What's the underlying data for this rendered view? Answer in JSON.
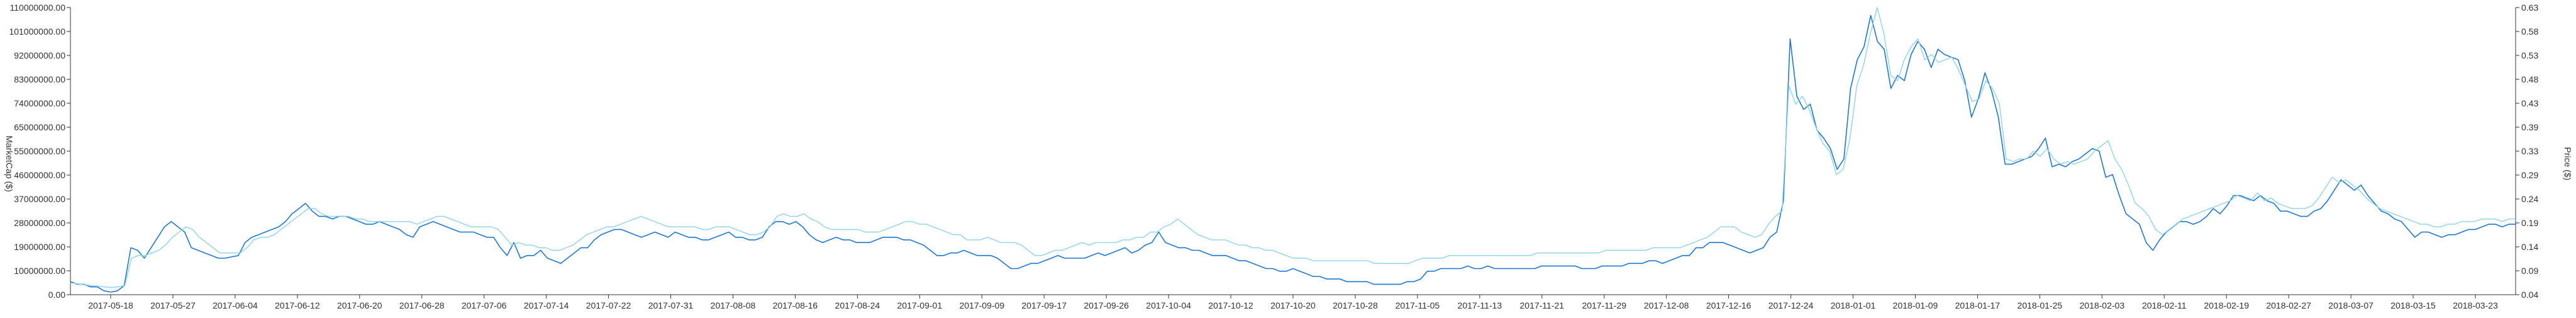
{
  "chart_data": {
    "type": "line",
    "title": "",
    "ylabel_left": "MarketCap ($)",
    "ylabel_right": "Price ($)",
    "y_left_ticks": [
      "0.00",
      "10000000.00",
      "19000000.00",
      "28000000.00",
      "37000000.00",
      "46000000.00",
      "55000000.00",
      "65000000.00",
      "74000000.00",
      "83000000.00",
      "92000000.00",
      "101000000.00",
      "110000000.00"
    ],
    "y_right_ticks": [
      "0.04",
      "0.09",
      "0.14",
      "0.19",
      "0.24",
      "0.29",
      "0.33",
      "0.39",
      "0.43",
      "0.48",
      "0.53",
      "0.58",
      "0.63"
    ],
    "x_ticks": [
      "2017-05-18",
      "2017-05-27",
      "2017-06-04",
      "2017-06-12",
      "2017-06-20",
      "2017-06-28",
      "2017-07-06",
      "2017-07-14",
      "2017-07-22",
      "2017-07-31",
      "2017-08-08",
      "2017-08-16",
      "2017-08-24",
      "2017-09-01",
      "2017-09-09",
      "2017-09-17",
      "2017-09-26",
      "2017-10-04",
      "2017-10-12",
      "2017-10-20",
      "2017-10-28",
      "2017-11-05",
      "2017-11-13",
      "2017-11-21",
      "2017-11-29",
      "2017-12-08",
      "2017-12-16",
      "2017-12-24",
      "2018-01-01",
      "2018-01-09",
      "2018-01-17",
      "2018-01-25",
      "2018-02-03",
      "2018-02-11",
      "2018-02-19",
      "2018-02-27",
      "2018-03-07",
      "2018-03-15",
      "2018-03-23"
    ],
    "ylim_left": [
      0,
      110000000
    ],
    "ylim_right": [
      0.04,
      0.63
    ],
    "colors": {
      "marketcap": "#1f77d4",
      "price": "#8fd3e8",
      "axis": "#333333"
    },
    "series": [
      {
        "key": "marketcap",
        "values": [
          5,
          4,
          4,
          3,
          3,
          1.5,
          1,
          1.5,
          3.5,
          18,
          17,
          14,
          18,
          22,
          26,
          28,
          26,
          24,
          18,
          17,
          16,
          15,
          14,
          14,
          14.5,
          15,
          20,
          22,
          23,
          24,
          25,
          26,
          28,
          31,
          33,
          35,
          32,
          30,
          30,
          29,
          30,
          30,
          29,
          28,
          27,
          27,
          28,
          27,
          26,
          25,
          23,
          22,
          26,
          27,
          28,
          27,
          26,
          25,
          24,
          24,
          24,
          23,
          22,
          22,
          18,
          15,
          20,
          14,
          15,
          15,
          17,
          14,
          13,
          12,
          14,
          16,
          18,
          18,
          21,
          23,
          24,
          25,
          25,
          24,
          23,
          22,
          23,
          24,
          23,
          22,
          24,
          23,
          22,
          22,
          21,
          21,
          22,
          23,
          24,
          22,
          22,
          21,
          21,
          22,
          26,
          28,
          28,
          27,
          28,
          26,
          23,
          21,
          20,
          21,
          22,
          21,
          21,
          20,
          20,
          20,
          21,
          22,
          22,
          22,
          21,
          21,
          20,
          19,
          17,
          15,
          15,
          16,
          16,
          17,
          16,
          15,
          15,
          15,
          14,
          12,
          10,
          10,
          11,
          12,
          12,
          13,
          14,
          15,
          14,
          14,
          14,
          14,
          15,
          16,
          15,
          16,
          17,
          18,
          16,
          17,
          19,
          20,
          24,
          20,
          19,
          18,
          18,
          17,
          17,
          16,
          15,
          15,
          15,
          14,
          13,
          13,
          12,
          11,
          10,
          10,
          9,
          9,
          10,
          9,
          8,
          7,
          7,
          6,
          6,
          6,
          5,
          5,
          5,
          5,
          4,
          4,
          4,
          4,
          4,
          5,
          5,
          6,
          9,
          9,
          10,
          10,
          10,
          10,
          11,
          10,
          10,
          11,
          10,
          10,
          10,
          10,
          10,
          10,
          10,
          11,
          11,
          11,
          11,
          11,
          11,
          10,
          10,
          10,
          11,
          11,
          11,
          11,
          12,
          12,
          12,
          13,
          13,
          12,
          13,
          14,
          15,
          15,
          18,
          18,
          20,
          20,
          20,
          19,
          18,
          17,
          16,
          17,
          18,
          22,
          24,
          36,
          98,
          76,
          71,
          73,
          63,
          60,
          56,
          48,
          52,
          79,
          90,
          95,
          107,
          97,
          94,
          79,
          84,
          82,
          92,
          97,
          94,
          87,
          94,
          92,
          91,
          90,
          82,
          68,
          75,
          85,
          78,
          68,
          50,
          50,
          51,
          52,
          53,
          56,
          60,
          49,
          50,
          49,
          51,
          52,
          54,
          56,
          55,
          45,
          46,
          38,
          31,
          29,
          27,
          20,
          17,
          21,
          24,
          26,
          28,
          28,
          27,
          28,
          30,
          33,
          31,
          34,
          38,
          38,
          37,
          36,
          38,
          36,
          35,
          32,
          32,
          31,
          30,
          30,
          32,
          33,
          36,
          40,
          44,
          42,
          40,
          42,
          38,
          35,
          32,
          31,
          29,
          28,
          25,
          22,
          24,
          24,
          23,
          22,
          23,
          23,
          24,
          25,
          25,
          26,
          27,
          27,
          26,
          27,
          27
        ]
      },
      {
        "key": "price",
        "values": [
          4.5,
          4.2,
          3.8,
          3.5,
          3.3,
          3,
          2.8,
          3,
          3.5,
          14,
          15,
          15,
          16,
          17,
          19,
          22,
          24,
          26,
          25,
          22,
          20,
          18,
          16,
          16,
          16,
          16,
          18,
          21,
          22,
          22,
          23,
          25,
          27,
          29,
          31,
          33,
          33,
          31,
          30,
          30,
          30,
          30,
          29,
          29,
          28,
          28,
          28,
          28,
          28,
          28,
          28,
          27,
          28,
          29,
          30,
          30,
          29,
          28,
          27,
          26,
          26,
          26,
          26,
          25,
          22,
          19,
          20,
          19,
          19,
          18,
          18,
          17,
          17,
          18,
          19,
          21,
          23,
          24,
          25,
          26,
          26,
          27,
          28,
          29,
          30,
          29,
          28,
          27,
          26,
          26,
          26,
          26,
          26,
          25,
          25,
          26,
          26,
          26,
          25,
          24,
          23,
          23,
          24,
          26,
          30,
          31,
          30,
          30,
          31,
          29,
          28,
          26,
          25,
          25,
          25,
          25,
          25,
          24,
          24,
          24,
          25,
          26,
          27,
          28,
          28,
          27,
          27,
          26,
          25,
          24,
          23,
          23,
          21,
          21,
          21,
          22,
          21,
          20,
          20,
          20,
          19,
          17,
          15,
          15,
          16,
          17,
          17,
          18,
          19,
          20,
          19,
          20,
          20,
          20,
          20,
          21,
          21,
          22,
          22,
          24,
          24,
          26,
          27,
          29,
          27,
          25,
          23,
          22,
          21,
          21,
          21,
          20,
          19,
          19,
          18,
          18,
          17,
          17,
          16,
          15,
          14,
          14,
          14,
          13,
          13,
          13,
          13,
          13,
          13,
          13,
          13,
          13,
          12,
          12,
          12,
          12,
          12,
          12,
          13,
          14,
          14,
          14,
          14,
          15,
          15,
          15,
          15,
          15,
          15,
          15,
          15,
          15,
          15,
          15,
          15,
          15,
          16,
          16,
          16,
          16,
          16,
          16,
          16,
          16,
          16,
          16,
          17,
          17,
          17,
          17,
          17,
          17,
          17,
          18,
          18,
          18,
          18,
          18,
          19,
          20,
          21,
          22,
          24,
          26,
          26,
          26,
          24,
          23,
          22,
          23,
          27,
          30,
          32,
          80,
          73,
          76,
          71,
          64,
          58,
          55,
          46,
          48,
          60,
          80,
          88,
          100,
          110,
          100,
          84,
          82,
          90,
          95,
          98,
          90,
          92,
          89,
          90,
          91,
          86,
          80,
          74,
          75,
          82,
          79,
          73,
          52,
          51,
          52,
          52,
          55,
          53,
          56,
          52,
          50,
          51,
          50,
          51,
          52,
          55,
          57,
          59,
          52,
          48,
          42,
          35,
          33,
          30,
          25,
          23,
          25,
          27,
          29,
          30,
          31,
          32,
          33,
          34,
          35,
          36,
          38,
          37,
          36,
          39,
          36,
          37,
          35,
          34,
          33,
          33,
          33,
          34,
          37,
          41,
          45,
          43,
          44,
          42,
          40,
          37,
          35,
          33,
          32,
          31,
          30,
          29,
          28,
          27,
          27,
          26,
          26,
          27,
          27,
          28,
          28,
          28,
          29,
          29,
          29,
          28,
          29,
          29
        ]
      }
    ]
  }
}
